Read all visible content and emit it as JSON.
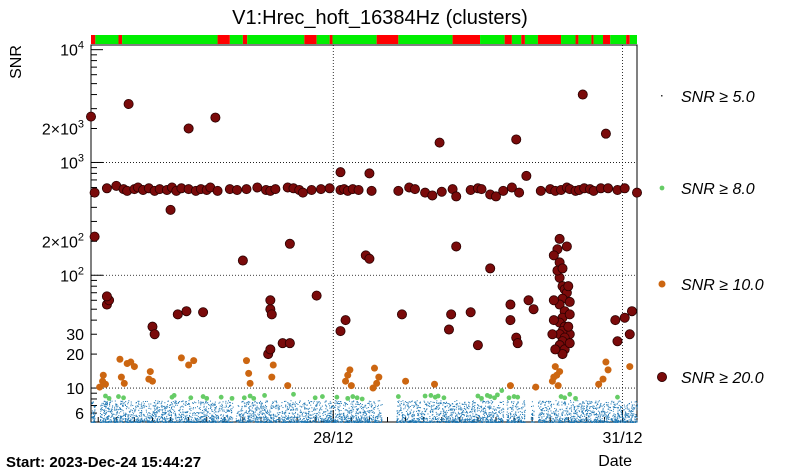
{
  "chart_data": {
    "type": "scatter",
    "title": "V1:Hrec_hoft_16384Hz (clusters)",
    "ylabel": "SNR",
    "xlabel": "Date",
    "start_label": "Start: 2023-Dec-24 15:44:27",
    "y_scale": "log",
    "ylim": [
      5,
      11000
    ],
    "xlim_days": [
      0,
      7.55
    ],
    "grid": true,
    "y_ticks": [
      {
        "value": 6,
        "label": "6"
      },
      {
        "value": 10,
        "label": "10"
      },
      {
        "value": 20,
        "label": "20"
      },
      {
        "value": 30,
        "label": "30"
      },
      {
        "value": 100,
        "label": "10",
        "exp": "2"
      },
      {
        "value": 200,
        "label": "2×10",
        "exp": "2"
      },
      {
        "value": 1000,
        "label": "10",
        "exp": "3"
      },
      {
        "value": 2000,
        "label": "2×10",
        "exp": "3"
      },
      {
        "value": 10000,
        "label": "10",
        "exp": "4"
      }
    ],
    "x_ticks": [
      {
        "value": 3.35,
        "label": "28/12"
      },
      {
        "value": 7.35,
        "label": "31/12"
      }
    ],
    "segment_colors": {
      "active": "#00ee00",
      "inactive": "#ff0000"
    },
    "segments": [
      {
        "start": 0.0,
        "end": 0.06,
        "state": "inactive"
      },
      {
        "start": 0.06,
        "end": 0.38,
        "state": "active"
      },
      {
        "start": 0.38,
        "end": 0.43,
        "state": "inactive"
      },
      {
        "start": 0.43,
        "end": 1.75,
        "state": "active"
      },
      {
        "start": 1.75,
        "end": 1.92,
        "state": "inactive"
      },
      {
        "start": 1.92,
        "end": 2.1,
        "state": "active"
      },
      {
        "start": 2.1,
        "end": 2.16,
        "state": "inactive"
      },
      {
        "start": 2.16,
        "end": 2.95,
        "state": "active"
      },
      {
        "start": 2.95,
        "end": 3.12,
        "state": "inactive"
      },
      {
        "start": 3.12,
        "end": 3.3,
        "state": "active"
      },
      {
        "start": 3.3,
        "end": 3.34,
        "state": "inactive"
      },
      {
        "start": 3.34,
        "end": 3.95,
        "state": "active"
      },
      {
        "start": 3.95,
        "end": 4.25,
        "state": "inactive"
      },
      {
        "start": 4.25,
        "end": 5.0,
        "state": "active"
      },
      {
        "start": 5.0,
        "end": 5.38,
        "state": "inactive"
      },
      {
        "start": 5.38,
        "end": 5.72,
        "state": "active"
      },
      {
        "start": 5.72,
        "end": 5.82,
        "state": "inactive"
      },
      {
        "start": 5.82,
        "end": 5.95,
        "state": "active"
      },
      {
        "start": 5.95,
        "end": 6.0,
        "state": "inactive"
      },
      {
        "start": 6.0,
        "end": 6.18,
        "state": "active"
      },
      {
        "start": 6.18,
        "end": 6.5,
        "state": "inactive"
      },
      {
        "start": 6.5,
        "end": 6.7,
        "state": "active"
      },
      {
        "start": 6.7,
        "end": 6.74,
        "state": "inactive"
      },
      {
        "start": 6.74,
        "end": 6.92,
        "state": "active"
      },
      {
        "start": 6.92,
        "end": 6.95,
        "state": "inactive"
      },
      {
        "start": 6.95,
        "end": 7.08,
        "state": "active"
      },
      {
        "start": 7.08,
        "end": 7.18,
        "state": "inactive"
      },
      {
        "start": 7.18,
        "end": 7.4,
        "state": "active"
      },
      {
        "start": 7.4,
        "end": 7.45,
        "state": "inactive"
      },
      {
        "start": 7.45,
        "end": 7.55,
        "state": "active"
      }
    ],
    "series": [
      {
        "name": "SNR ≥ 5.0",
        "legend_label": "SNR ≥ 5.0",
        "color": "#1f78b4",
        "marker": "dot",
        "band": {
          "low": 5.0,
          "high": 8.0
        },
        "gaps": [
          [
            0.06,
            0.12
          ],
          [
            1.96,
            2.0
          ],
          [
            4.02,
            4.22
          ],
          [
            5.7,
            5.74
          ],
          [
            6.0,
            6.08
          ],
          [
            6.12,
            6.18
          ]
        ]
      },
      {
        "name": "SNR ≥ 8.0",
        "legend_label": "SNR ≥ 8.0",
        "color": "#66cc66",
        "marker": "small",
        "points": [
          [
            0.2,
            8.5
          ],
          [
            0.25,
            8.1
          ],
          [
            0.38,
            8.4
          ],
          [
            0.45,
            8.2
          ],
          [
            1.12,
            8.3
          ],
          [
            1.15,
            8.6
          ],
          [
            1.38,
            8.2
          ],
          [
            1.55,
            8.4
          ],
          [
            1.6,
            8.1
          ],
          [
            1.8,
            8.3
          ],
          [
            1.95,
            8.1
          ],
          [
            2.12,
            8.2
          ],
          [
            2.2,
            8.5
          ],
          [
            2.25,
            8.1
          ],
          [
            2.4,
            8.6
          ],
          [
            2.8,
            8.8
          ],
          [
            3.1,
            8.2
          ],
          [
            3.2,
            8.4
          ],
          [
            3.4,
            8.3
          ],
          [
            3.55,
            8.1
          ],
          [
            3.62,
            8.4
          ],
          [
            3.68,
            8.2
          ],
          [
            3.75,
            8.0
          ],
          [
            4.25,
            8.4
          ],
          [
            4.62,
            8.5
          ],
          [
            4.7,
            8.6
          ],
          [
            4.76,
            8.3
          ],
          [
            4.8,
            8.5
          ],
          [
            4.88,
            8.2
          ],
          [
            5.35,
            8.5
          ],
          [
            5.4,
            8.1
          ],
          [
            5.48,
            8.6
          ],
          [
            5.52,
            8.4
          ],
          [
            5.58,
            8.2
          ],
          [
            5.62,
            8.7
          ],
          [
            5.68,
            9.5
          ],
          [
            5.78,
            8.2
          ],
          [
            5.85,
            8.4
          ],
          [
            5.9,
            8.3
          ],
          [
            6.5,
            8.4
          ],
          [
            6.55,
            8.2
          ],
          [
            6.62,
            8.8
          ],
          [
            6.7,
            8.1
          ],
          [
            7.28,
            8.3
          ]
        ]
      },
      {
        "name": "SNR ≥ 10.0",
        "legend_label": "SNR ≥ 10.0",
        "color": "#cc6611",
        "marker": "medium",
        "points": [
          [
            0.12,
            10.2
          ],
          [
            0.16,
            11.5
          ],
          [
            0.17,
            13.0
          ],
          [
            0.2,
            10.8
          ],
          [
            0.4,
            18.0
          ],
          [
            0.42,
            12.5
          ],
          [
            0.46,
            11.0
          ],
          [
            0.5,
            16.5
          ],
          [
            0.55,
            17.0
          ],
          [
            0.6,
            15.5
          ],
          [
            0.8,
            12.0
          ],
          [
            0.82,
            14.0
          ],
          [
            0.85,
            11.5
          ],
          [
            1.25,
            18.5
          ],
          [
            1.35,
            16.0
          ],
          [
            1.42,
            17.5
          ],
          [
            2.15,
            17.5
          ],
          [
            2.18,
            13.5
          ],
          [
            2.2,
            11.0
          ],
          [
            2.5,
            12.5
          ],
          [
            2.52,
            16.0
          ],
          [
            2.72,
            10.5
          ],
          [
            3.52,
            11.5
          ],
          [
            3.55,
            13.0
          ],
          [
            3.58,
            14.5
          ],
          [
            3.6,
            10.5
          ],
          [
            3.9,
            10.0
          ],
          [
            3.92,
            15.0
          ],
          [
            3.95,
            11.0
          ],
          [
            3.98,
            12.5
          ],
          [
            4.35,
            11.5
          ],
          [
            4.75,
            10.8
          ],
          [
            5.8,
            10.5
          ],
          [
            6.15,
            10.2
          ],
          [
            6.38,
            11.5
          ],
          [
            6.4,
            12.5
          ],
          [
            6.42,
            15.5
          ],
          [
            6.44,
            13.0
          ],
          [
            6.46,
            10.5
          ],
          [
            6.48,
            14.0
          ],
          [
            7.02,
            10.8
          ],
          [
            7.08,
            12.0
          ],
          [
            7.12,
            17.0
          ],
          [
            7.15,
            14.5
          ],
          [
            7.45,
            15.5
          ]
        ]
      },
      {
        "name": "SNR ≥ 20.0",
        "legend_label": "SNR ≥ 20.0",
        "color": "#7a0a0a",
        "marker": "large",
        "points": [
          [
            0.0,
            2550
          ],
          [
            0.05,
            540
          ],
          [
            0.22,
            590
          ],
          [
            0.35,
            620
          ],
          [
            0.45,
            580
          ],
          [
            0.5,
            560
          ],
          [
            0.6,
            580
          ],
          [
            0.65,
            600
          ],
          [
            0.72,
            570
          ],
          [
            0.8,
            590
          ],
          [
            0.88,
            560
          ],
          [
            0.95,
            580
          ],
          [
            1.05,
            570
          ],
          [
            1.12,
            600
          ],
          [
            1.18,
            560
          ],
          [
            1.25,
            590
          ],
          [
            1.35,
            580
          ],
          [
            1.45,
            560
          ],
          [
            1.52,
            580
          ],
          [
            1.6,
            570
          ],
          [
            1.65,
            600
          ],
          [
            1.75,
            560
          ],
          [
            1.92,
            580
          ],
          [
            2.02,
            570
          ],
          [
            2.15,
            580
          ],
          [
            2.3,
            600
          ],
          [
            2.42,
            570
          ],
          [
            2.48,
            560
          ],
          [
            2.55,
            580
          ],
          [
            2.72,
            600
          ],
          [
            2.8,
            590
          ],
          [
            2.88,
            570
          ],
          [
            2.93,
            540
          ],
          [
            3.05,
            570
          ],
          [
            3.18,
            580
          ],
          [
            3.3,
            590
          ],
          [
            3.45,
            570
          ],
          [
            3.5,
            580
          ],
          [
            3.55,
            560
          ],
          [
            3.62,
            580
          ],
          [
            3.7,
            570
          ],
          [
            3.88,
            560
          ],
          [
            4.25,
            560
          ],
          [
            4.4,
            600
          ],
          [
            4.48,
            580
          ],
          [
            4.62,
            540
          ],
          [
            4.72,
            510
          ],
          [
            4.85,
            550
          ],
          [
            5.0,
            580
          ],
          [
            5.05,
            500
          ],
          [
            5.25,
            570
          ],
          [
            5.35,
            590
          ],
          [
            5.4,
            580
          ],
          [
            5.52,
            520
          ],
          [
            5.6,
            500
          ],
          [
            5.7,
            560
          ],
          [
            5.82,
            600
          ],
          [
            5.92,
            540
          ],
          [
            6.22,
            560
          ],
          [
            6.35,
            580
          ],
          [
            6.42,
            560
          ],
          [
            6.5,
            570
          ],
          [
            6.58,
            600
          ],
          [
            6.62,
            580
          ],
          [
            6.7,
            560
          ],
          [
            6.75,
            570
          ],
          [
            6.82,
            590
          ],
          [
            6.9,
            580
          ],
          [
            6.95,
            560
          ],
          [
            7.05,
            590
          ],
          [
            7.15,
            590
          ],
          [
            7.28,
            570
          ],
          [
            7.38,
            590
          ],
          [
            7.55,
            540
          ],
          [
            0.52,
            3300
          ],
          [
            0.05,
            220
          ],
          [
            1.1,
            380
          ],
          [
            1.35,
            2000
          ],
          [
            1.72,
            2500
          ],
          [
            2.1,
            135
          ],
          [
            3.45,
            820
          ],
          [
            3.85,
            800
          ],
          [
            2.75,
            190
          ],
          [
            3.8,
            150
          ],
          [
            3.85,
            140
          ],
          [
            4.82,
            1500
          ],
          [
            5.05,
            180
          ],
          [
            5.52,
            115
          ],
          [
            5.88,
            1600
          ],
          [
            6.02,
            760
          ],
          [
            6.8,
            4000
          ],
          [
            6.58,
            180
          ],
          [
            7.12,
            1800
          ],
          [
            0.22,
            55
          ],
          [
            0.25,
            60
          ],
          [
            0.22,
            65
          ],
          [
            0.85,
            35
          ],
          [
            0.88,
            30
          ],
          [
            1.2,
            45
          ],
          [
            1.32,
            48
          ],
          [
            1.55,
            47
          ],
          [
            2.45,
            20
          ],
          [
            2.48,
            22
          ],
          [
            2.48,
            50
          ],
          [
            2.5,
            45
          ],
          [
            2.48,
            60
          ],
          [
            2.65,
            25
          ],
          [
            2.75,
            25
          ],
          [
            3.12,
            66
          ],
          [
            3.45,
            32
          ],
          [
            3.52,
            40
          ],
          [
            4.3,
            45
          ],
          [
            4.95,
            33
          ],
          [
            4.98,
            45
          ],
          [
            5.25,
            47
          ],
          [
            5.35,
            24
          ],
          [
            5.8,
            55
          ],
          [
            5.8,
            40
          ],
          [
            5.88,
            28
          ],
          [
            5.9,
            25
          ],
          [
            6.05,
            60
          ],
          [
            6.12,
            50
          ],
          [
            6.62,
            30
          ],
          [
            7.25,
            40
          ],
          [
            7.28,
            26
          ],
          [
            7.38,
            42
          ],
          [
            7.45,
            30
          ],
          [
            7.48,
            48
          ],
          [
            6.45,
            170
          ],
          [
            6.48,
            210
          ],
          [
            6.4,
            150
          ],
          [
            6.48,
            95
          ],
          [
            6.52,
            80
          ],
          [
            6.55,
            75
          ],
          [
            6.58,
            70
          ],
          [
            6.52,
            62
          ],
          [
            6.48,
            55
          ],
          [
            6.55,
            48
          ],
          [
            6.52,
            42
          ],
          [
            6.48,
            38
          ],
          [
            6.55,
            35
          ],
          [
            6.52,
            32
          ],
          [
            6.48,
            30
          ],
          [
            6.55,
            28
          ],
          [
            6.52,
            26
          ],
          [
            6.48,
            24
          ],
          [
            6.55,
            22
          ],
          [
            6.52,
            20
          ],
          [
            6.4,
            60
          ],
          [
            6.4,
            40
          ],
          [
            6.38,
            30
          ],
          [
            6.42,
            22
          ],
          [
            6.6,
            80
          ],
          [
            6.62,
            58
          ],
          [
            6.62,
            45
          ],
          [
            6.6,
            35
          ],
          [
            6.62,
            25
          ],
          [
            6.48,
            130
          ],
          [
            6.45,
            110
          ],
          [
            6.52,
            115
          ]
        ]
      }
    ]
  }
}
